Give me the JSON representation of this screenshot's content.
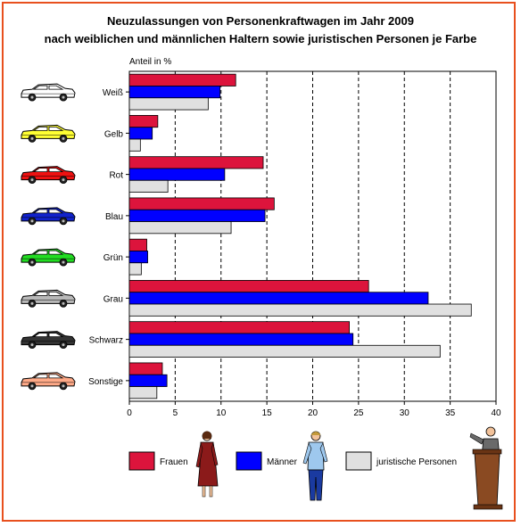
{
  "title_line1": "Neuzulassungen von Personenkraftwagen im Jahr 2009",
  "title_line2": "nach weiblichen und männlichen Haltern sowie juristischen Personen je Farbe",
  "chart_data": {
    "type": "bar",
    "orientation": "horizontal",
    "unit_label": "Anteil in %",
    "categories": [
      "Weiß",
      "Gelb",
      "Rot",
      "Blau",
      "Grün",
      "Grau",
      "Schwarz",
      "Sonstige"
    ],
    "series": [
      {
        "name": "Frauen",
        "color": "#dc143c",
        "values": [
          11.6,
          3.1,
          14.6,
          15.8,
          1.9,
          26.1,
          24.0,
          3.6
        ]
      },
      {
        "name": "Männer",
        "color": "#0000ff",
        "values": [
          9.9,
          2.5,
          10.4,
          14.8,
          2.0,
          32.6,
          24.4,
          4.1
        ]
      },
      {
        "name": "juristische Personen",
        "color": "#e0e0e0",
        "values": [
          8.6,
          1.2,
          4.2,
          11.1,
          1.3,
          37.3,
          33.9,
          3.0
        ]
      }
    ],
    "xlim": [
      0,
      40
    ],
    "xticks": [
      0,
      5,
      10,
      15,
      20,
      25,
      30,
      35,
      40
    ],
    "grid": "vertical dashed",
    "legend_position": "bottom",
    "car_colors": [
      "#ffffff",
      "#ffff33",
      "#ee1111",
      "#1122cc",
      "#22dd22",
      "#b8b8b8",
      "#333333",
      "#ffaa88"
    ]
  }
}
